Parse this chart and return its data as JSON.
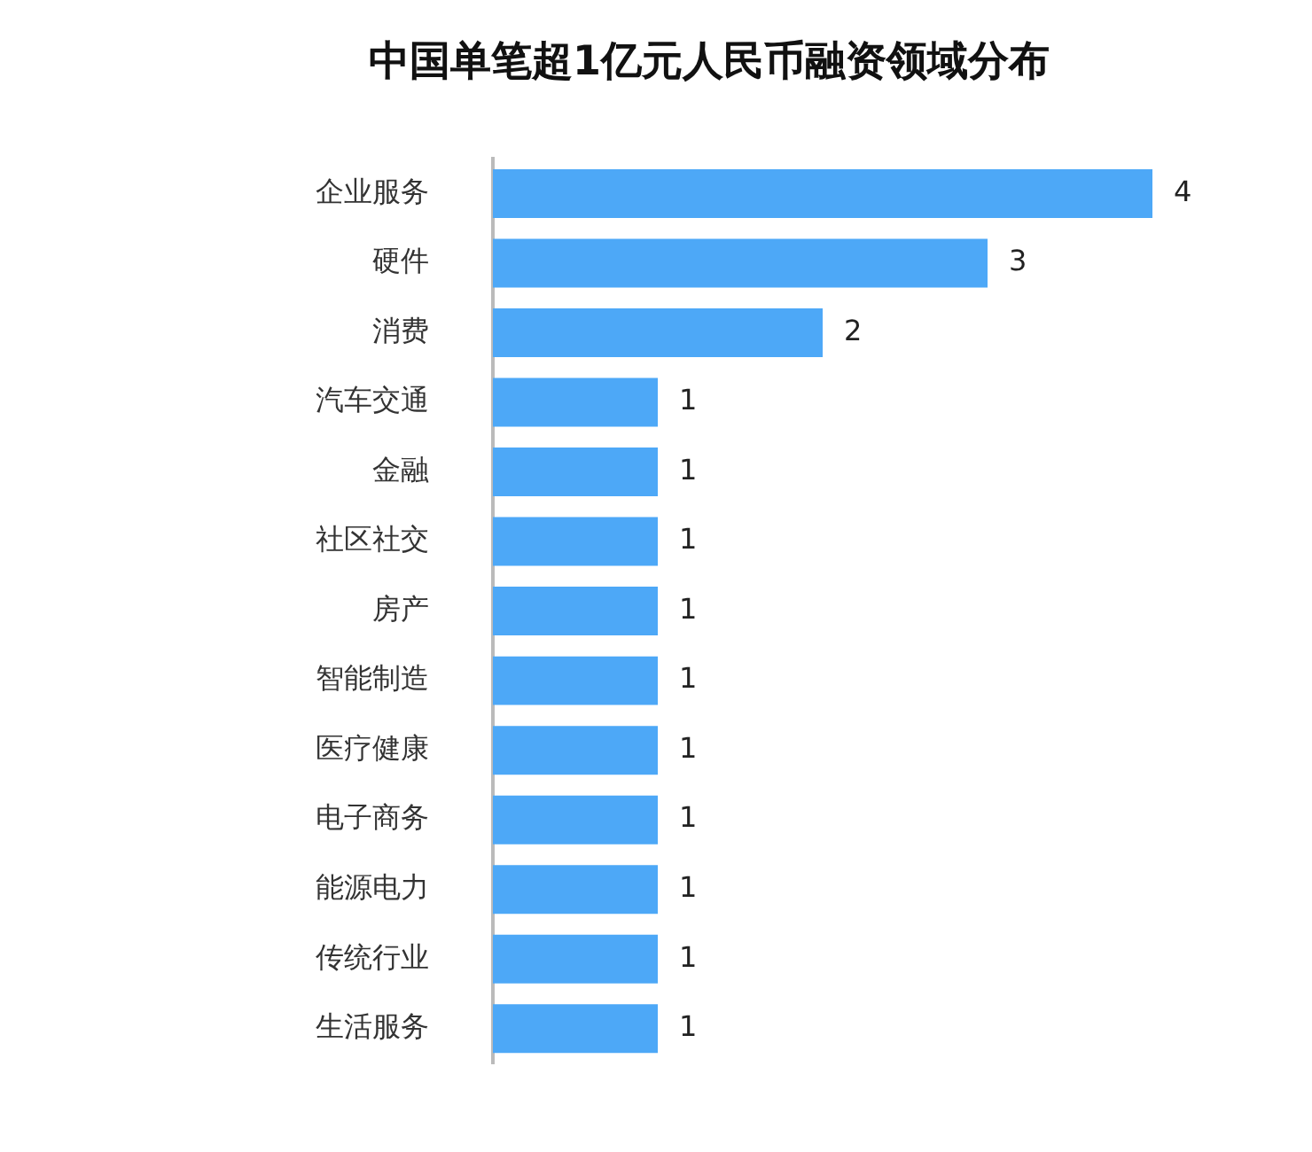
{
  "chart_data": {
    "type": "bar",
    "orientation": "horizontal",
    "title": "中国单笔超1亿元人民币融资领域分布",
    "categories": [
      "企业服务",
      "硬件",
      "消费",
      "汽车交通",
      "金融",
      "社区社交",
      "房产",
      "智能制造",
      "医疗健康",
      "电子商务",
      "能源电力",
      "传统行业",
      "生活服务"
    ],
    "values": [
      4,
      3,
      2,
      1,
      1,
      1,
      1,
      1,
      1,
      1,
      1,
      1,
      1
    ],
    "color": "#4da8f7",
    "data_labels": true,
    "legend": false,
    "tick_labels": "y"
  }
}
